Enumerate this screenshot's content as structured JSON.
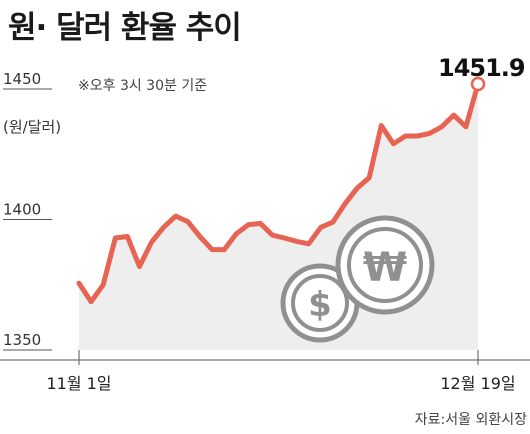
{
  "chart_data": {
    "type": "line",
    "title": "원· 달러 환율 추이",
    "ylabel": "(원/달러)",
    "note": "※오후 3시 30분 기준",
    "source": "자료:서울 외환시장",
    "ylim": [
      1350,
      1460
    ],
    "yticks": [
      1450,
      1400,
      1350
    ],
    "ytick_labels": [
      "1450",
      "1400",
      "1350"
    ],
    "x_start_label": "11월 1일",
    "x_end_label": "12월 19일",
    "last_value_label": "1451.9",
    "grid": false,
    "series": [
      {
        "values": [
          1375.6,
          1368.5,
          1375,
          1392.9,
          1393.5,
          1382,
          1391.3,
          1397,
          1401.3,
          1399.2,
          1393.5,
          1388.5,
          1388.4,
          1394.5,
          1398,
          1398.5,
          1394,
          1392.9,
          1391.6,
          1390.7,
          1397,
          1399,
          1406,
          1412,
          1416,
          1436,
          1429,
          1432,
          1432,
          1433,
          1435.5,
          1440,
          1435.5,
          1451.9
        ]
      }
    ]
  },
  "colors": {
    "line": "#e86452",
    "area": "#eeeeee",
    "axis": "#555555",
    "coin": "#909090"
  },
  "icons": [
    "won-coin-icon",
    "dollar-coin-icon"
  ]
}
